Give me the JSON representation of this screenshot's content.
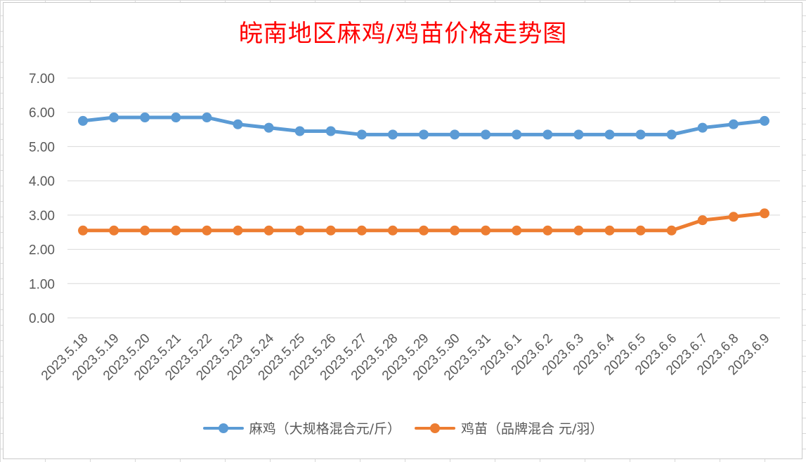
{
  "chart_data": {
    "type": "line",
    "title": "皖南地区麻鸡/鸡苗价格走势图",
    "categories": [
      "2023.5.18",
      "2023.5.19",
      "2023.5.20",
      "2023.5.21",
      "2023.5.22",
      "2023.5.23",
      "2023.5.24",
      "2023.5.25",
      "2023.5.26",
      "2023.5.27",
      "2023.5.28",
      "2023.5.29",
      "2023.5.30",
      "2023.5.31",
      "2023.6.1",
      "2023.6.2",
      "2023.6.3",
      "2023.6.4",
      "2023.6.5",
      "2023.6.6",
      "2023.6.7",
      "2023.6.8",
      "2023.6.9"
    ],
    "series": [
      {
        "name": "麻鸡（大规格混合元/斤）",
        "color": "#5b9bd5",
        "values": [
          5.75,
          5.85,
          5.85,
          5.85,
          5.85,
          5.65,
          5.55,
          5.45,
          5.45,
          5.35,
          5.35,
          5.35,
          5.35,
          5.35,
          5.35,
          5.35,
          5.35,
          5.35,
          5.35,
          5.35,
          5.55,
          5.65,
          5.75
        ]
      },
      {
        "name": "鸡苗（品牌混合 元/羽）",
        "color": "#ed7d31",
        "values": [
          2.55,
          2.55,
          2.55,
          2.55,
          2.55,
          2.55,
          2.55,
          2.55,
          2.55,
          2.55,
          2.55,
          2.55,
          2.55,
          2.55,
          2.55,
          2.55,
          2.55,
          2.55,
          2.55,
          2.55,
          2.85,
          2.95,
          3.05
        ]
      }
    ],
    "ylim": [
      0,
      7
    ],
    "yticks": [
      "0.00",
      "1.00",
      "2.00",
      "3.00",
      "4.00",
      "5.00",
      "6.00",
      "7.00"
    ],
    "grid": true,
    "legend_position": "bottom"
  }
}
